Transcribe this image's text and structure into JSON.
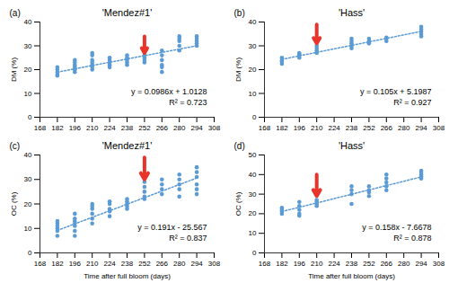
{
  "chart_data": [
    {
      "type": "scatter",
      "panel_label": "(a)",
      "title": "'Mendez#1'",
      "y_label": "DM (%)",
      "color": "#5b9bd5",
      "x": [
        182,
        182,
        182,
        182,
        182,
        196,
        196,
        196,
        196,
        196,
        196,
        196,
        210,
        210,
        210,
        210,
        210,
        210,
        210,
        224,
        224,
        224,
        224,
        224,
        238,
        238,
        238,
        238,
        238,
        252,
        252,
        252,
        252,
        266,
        266,
        266,
        266,
        266,
        266,
        280,
        280,
        280,
        280,
        280,
        294,
        294,
        294,
        294,
        294
      ],
      "values": [
        18,
        19,
        20,
        21,
        17.5,
        19,
        20,
        21,
        22,
        23,
        24,
        20.5,
        20,
        21,
        22,
        23,
        24,
        26,
        27,
        21,
        22,
        23,
        24,
        25,
        22,
        23,
        24,
        25,
        26,
        23,
        24,
        25,
        26,
        19,
        21,
        22,
        24,
        26,
        28,
        28,
        30,
        32,
        33,
        34,
        30,
        31,
        32,
        33,
        34
      ],
      "trendline": {
        "slope": 0.0986,
        "intercept": 1.0128,
        "label": "y = 0.0986x + 1.0128",
        "r2_label": "R² = 0.723"
      },
      "annotations": [
        {
          "type": "arrow",
          "x": 252,
          "y_start": 34,
          "y_end": 27,
          "color": "#e8342a"
        }
      ],
      "xlim": [
        168,
        308
      ],
      "xticks": [
        168,
        182,
        196,
        210,
        224,
        238,
        252,
        266,
        280,
        294,
        308
      ],
      "ylim": [
        0,
        40
      ],
      "yticks": [
        0,
        10,
        20,
        30,
        40
      ]
    },
    {
      "type": "scatter",
      "panel_label": "(b)",
      "title": "'Hass'",
      "y_label": "DM (%)",
      "color": "#5b9bd5",
      "x": [
        182,
        182,
        182,
        182,
        196,
        196,
        196,
        196,
        210,
        210,
        210,
        210,
        238,
        238,
        238,
        238,
        238,
        252,
        252,
        252,
        252,
        266,
        266,
        266,
        294,
        294,
        294,
        294,
        294
      ],
      "values": [
        22.5,
        23.5,
        24,
        25,
        25,
        26,
        26.5,
        27,
        27,
        28,
        29,
        30,
        29,
        30,
        31,
        32,
        33,
        31,
        31.5,
        32,
        33,
        32,
        33,
        33.5,
        34,
        35,
        36,
        37,
        38
      ],
      "trendline": {
        "slope": 0.105,
        "intercept": 5.1987,
        "label": "y = 0.105x + 5.1987",
        "r2_label": "R² = 0.927"
      },
      "annotations": [
        {
          "type": "arrow",
          "x": 210,
          "y_start": 39,
          "y_end": 31,
          "color": "#e8342a"
        }
      ],
      "xlim": [
        168,
        308
      ],
      "xticks": [
        168,
        182,
        196,
        210,
        224,
        238,
        252,
        266,
        280,
        294,
        308
      ],
      "ylim": [
        0,
        40
      ],
      "yticks": [
        0,
        10,
        20,
        30,
        40
      ]
    },
    {
      "type": "scatter",
      "panel_label": "(c)",
      "title": "'Mendez#1'",
      "y_label": "OC (%)",
      "x_label": "Time after full bloom (days)",
      "color": "#5b9bd5",
      "x": [
        182,
        182,
        182,
        182,
        182,
        182,
        196,
        196,
        196,
        196,
        196,
        196,
        196,
        210,
        210,
        210,
        210,
        210,
        210,
        224,
        224,
        224,
        224,
        224,
        238,
        238,
        238,
        238,
        238,
        252,
        252,
        252,
        252,
        252,
        266,
        266,
        266,
        266,
        280,
        280,
        280,
        280,
        280,
        294,
        294,
        294,
        294,
        294,
        294
      ],
      "values": [
        7,
        9,
        10,
        11,
        12,
        13,
        7,
        9,
        11,
        12,
        13,
        14,
        16,
        12,
        14,
        16,
        18,
        19,
        20,
        15,
        17,
        18,
        20,
        21,
        18,
        19,
        20,
        21,
        22,
        22,
        23,
        25,
        27,
        29,
        24,
        26,
        28,
        30,
        23,
        26,
        28,
        30,
        32,
        24,
        26,
        28,
        31,
        33,
        35
      ],
      "trendline": {
        "slope": 0.191,
        "intercept": -25.567,
        "label": "y = 0.191x - 25.567",
        "r2_label": "R² = 0.837"
      },
      "annotations": [
        {
          "type": "arrow",
          "x": 252,
          "y_start": 39,
          "y_end": 30,
          "color": "#e8342a"
        }
      ],
      "xlim": [
        168,
        308
      ],
      "xticks": [
        168,
        182,
        196,
        210,
        224,
        238,
        252,
        266,
        280,
        294,
        308
      ],
      "ylim": [
        0,
        40
      ],
      "yticks": [
        0,
        10,
        20,
        30,
        40
      ]
    },
    {
      "type": "scatter",
      "panel_label": "(d)",
      "title": "'Hass'",
      "y_label": "OC (%)",
      "x_label": "Time after full bloom (days)",
      "color": "#5b9bd5",
      "x": [
        182,
        182,
        182,
        182,
        196,
        196,
        196,
        196,
        196,
        210,
        210,
        210,
        210,
        238,
        238,
        238,
        238,
        252,
        252,
        252,
        252,
        266,
        266,
        266,
        266,
        266,
        294,
        294,
        294,
        294,
        294
      ],
      "values": [
        20,
        21,
        22,
        23,
        19,
        20,
        22,
        24,
        26,
        24,
        25,
        26,
        27,
        25,
        30,
        32,
        34,
        29,
        31,
        32,
        34,
        32,
        34,
        36,
        38,
        40,
        38,
        39,
        40,
        41,
        42
      ],
      "trendline": {
        "slope": 0.158,
        "intercept": -7.6678,
        "label": "y = 0.158x - 7.6678",
        "r2_label": "R² = 0.878"
      },
      "annotations": [
        {
          "type": "arrow",
          "x": 210,
          "y_start": 40,
          "y_end": 29,
          "color": "#e8342a"
        }
      ],
      "xlim": [
        168,
        308
      ],
      "xticks": [
        168,
        182,
        196,
        210,
        224,
        238,
        252,
        266,
        280,
        294,
        308
      ],
      "ylim": [
        0,
        50
      ],
      "yticks": [
        0,
        10,
        20,
        30,
        40,
        50
      ]
    }
  ]
}
